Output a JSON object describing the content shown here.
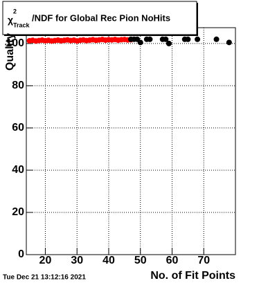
{
  "chart_data": {
    "type": "scatter",
    "title_symbol": "χ",
    "title_sup": "2",
    "title_sub": "Track",
    "title": "/NDF for Global Rec Pion NoHits",
    "x_label": "No. of Fit Points",
    "y_label": "Quality",
    "timestamp": "Tue Dec 21 13:12:16 2021",
    "xlim": [
      14,
      80
    ],
    "xticks": [
      20,
      30,
      40,
      50,
      60,
      70
    ],
    "ylim": [
      0,
      107.5
    ],
    "yticks": [
      0,
      20,
      40,
      60,
      80,
      100
    ],
    "grid": true,
    "series": [
      {
        "name": "Global Rec",
        "color": "#ff0000",
        "x": [
          15,
          16,
          17,
          18,
          19,
          20,
          21,
          22,
          23,
          24,
          25,
          26,
          27,
          28,
          29,
          30,
          31,
          32,
          33,
          34,
          35,
          36,
          37,
          38,
          39,
          40,
          41,
          42,
          43,
          44,
          45,
          46,
          47
        ],
        "values": [
          101.3,
          101.5,
          101.2,
          101.4,
          101.6,
          101.3,
          101.5,
          101.2,
          101.4,
          101.6,
          101.3,
          101.5,
          101.7,
          101.4,
          101.6,
          101.2,
          101.5,
          101.7,
          101.4,
          101.6,
          101.8,
          101.5,
          101.7,
          101.9,
          101.6,
          101.8,
          101.7,
          101.9,
          101.6,
          101.8,
          101.9,
          101.7,
          101.8
        ]
      },
      {
        "name": "NoHits",
        "color": "#000000",
        "x": [
          47,
          48,
          49,
          50,
          52,
          53,
          57,
          58,
          59,
          64,
          65,
          68,
          74,
          78
        ],
        "values": [
          102,
          102,
          102,
          100.5,
          102,
          102,
          102,
          102,
          100,
          102,
          102,
          102,
          102,
          100.5
        ]
      }
    ]
  }
}
